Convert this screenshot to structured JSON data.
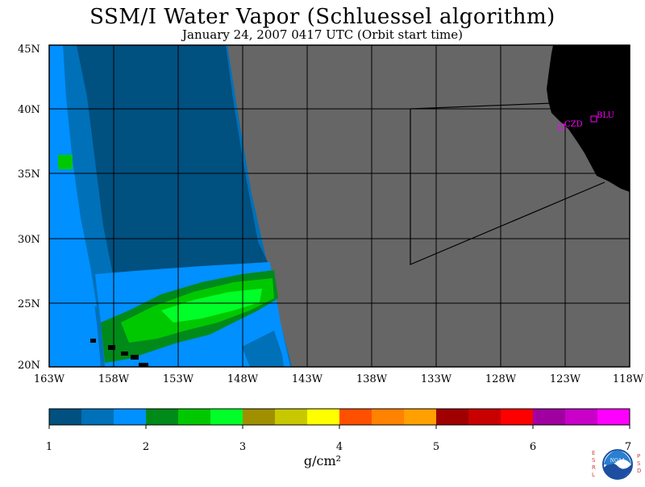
{
  "header": {
    "title": "SSM/I Water Vapor (Schluessel algorithm)",
    "subtitle": "January 24, 2007  0417 UTC  (Orbit start time)"
  },
  "map": {
    "lat_labels": [
      "45N",
      "40N",
      "35N",
      "30N",
      "25N",
      "20N"
    ],
    "lon_labels": [
      "163W",
      "158W",
      "153W",
      "148W",
      "143W",
      "138W",
      "133W",
      "128W",
      "123W",
      "118W"
    ],
    "extent": {
      "lon_min": -163,
      "lon_max": -118,
      "lat_min": 20,
      "lat_max": 45
    },
    "stations": [
      {
        "id": "CZD",
        "lon": -123.3,
        "lat": 38.6
      },
      {
        "id": "BLU",
        "lon": -120.7,
        "lat": 39.3
      }
    ],
    "colors": {
      "no_data": "#666666",
      "land": "#000000",
      "grid": "#000000",
      "station": "#ff00ff"
    }
  },
  "colorbar": {
    "labels": [
      "1",
      "2",
      "3",
      "4",
      "5",
      "6",
      "7"
    ],
    "unit": "g/cm²",
    "colors": [
      "#005080",
      "#0070b8",
      "#0090ff",
      "#008a1a",
      "#00c800",
      "#00ff28",
      "#a09000",
      "#c8c800",
      "#ffff00",
      "#ff5000",
      "#ff8200",
      "#ffa000",
      "#a00000",
      "#c80000",
      "#ff0000",
      "#a000a0",
      "#c800c8",
      "#ff00ff"
    ]
  },
  "logo": {
    "left_letters": "ESRL",
    "right_letters": "PSD",
    "center_text": "NOAA"
  }
}
